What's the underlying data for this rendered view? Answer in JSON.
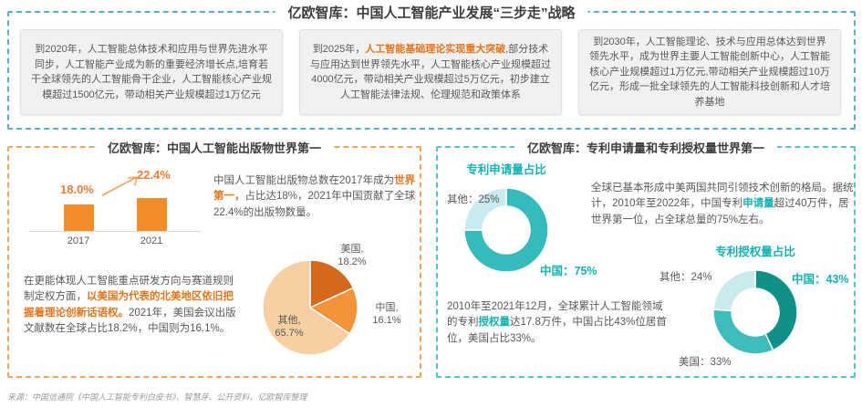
{
  "top": {
    "title": "亿欧智库：中国人工智能产业发展“三步走”战略",
    "boxes": [
      {
        "parts": [
          {
            "t": "到2020年，人工智能总体技术和应用与世界先进水平同步，人工智能产业成为新的重要经济增长点,培育若干全球领先的人工智能骨干企业，人工智能核心产业规模超过1500亿元，带动相关产业规模超过1万亿元"
          }
        ]
      },
      {
        "parts": [
          {
            "t": "到2025年，"
          },
          {
            "t": "人工智能基础理论实现重大突破",
            "hl": "orange"
          },
          {
            "t": ",部分技术与应用达到世界领先水平，人工智能核心产业规模超过4000亿元，带动相关产业规模超过5万亿元，初步建立人工智能法律法规、伦理规范和政策体系"
          }
        ]
      },
      {
        "parts": [
          {
            "t": "到2030年，人工智能理论、技术与应用总体达到世界领先水平，成为世界主要人工智能创新中心，人工智能核心产业规模超过1万亿元,带动相关产业规模超过10万亿元，形成一批全球领先的人工智能科技创新和人才培养基地"
          }
        ]
      }
    ]
  },
  "left_panel": {
    "title": "亿欧智库：中国人工智能出版物世界第一",
    "para1": {
      "parts": [
        {
          "t": "中国人工智能出版物总数在2017年成为"
        },
        {
          "t": "世界第一，",
          "hl": "orange"
        },
        {
          "t": "占比达18%，2021年中国贡献了全球22.4%的出版物数量。"
        }
      ]
    },
    "para2": {
      "parts": [
        {
          "t": "在更能体现人工智能重点研发方向与赛道规则制定权方面，"
        },
        {
          "t": "以美国为代表的北美地区依旧把握着理论创新话语权。",
          "hl": "orange"
        },
        {
          "t": "2021年，美国会议出版文献数在全球占比18.2%，中国则为16.1%。"
        }
      ]
    }
  },
  "right_panel": {
    "title": "亿欧智库：专利申请量和专利授权量世界第一",
    "para1": {
      "parts": [
        {
          "t": "全球已基本形成中美两国共同引领技术创新的格局。据统计，2010年至2022年，中国专利"
        },
        {
          "t": "申请量",
          "hl": "teal"
        },
        {
          "t": "超过40万件，居世界第一位，占全球总量的75%左右。"
        }
      ]
    },
    "para2": {
      "parts": [
        {
          "t": "2010年至2021年12月，全球累计人工智能领域的专利"
        },
        {
          "t": "授权量",
          "hl": "teal"
        },
        {
          "t": "达17.8万件，中国占比43%位居首位，美国占比33%。"
        }
      ]
    }
  },
  "footer": {
    "source": "来源：中国信通院《中国人工智能专利白皮书》、智慧芽、公开资料、亿欧智库整理"
  },
  "chart_data": [
    {
      "id": "china-ai-publications-share",
      "type": "bar",
      "title": "中国人工智能出版物全球占比",
      "categories": [
        "2017",
        "2021"
      ],
      "values": [
        18.0,
        22.4
      ],
      "value_labels": [
        "18.0%",
        "22.4%"
      ],
      "unit": "%",
      "ylim": [
        0,
        25
      ],
      "bar_color": "#F28D2A",
      "grid": false,
      "legend": "none"
    },
    {
      "id": "conference-publications-2021",
      "type": "pie",
      "title": "2021年会议出版文献全球占比",
      "labels": [
        "美国",
        "中国",
        "其他"
      ],
      "values": [
        18.2,
        16.1,
        65.7
      ],
      "label_lines": [
        [
          "美国,",
          "18.2%"
        ],
        [
          "中国,",
          "16.1%"
        ],
        [
          "其他,",
          "65.7%"
        ]
      ],
      "colors": [
        "#D4691B",
        "#F3943B",
        "#F7CFA3"
      ],
      "start_angle": "top",
      "direction": "clockwise"
    },
    {
      "id": "patent-applications-share",
      "type": "donut",
      "title": "专利申请量占比",
      "labels": [
        "中国",
        "其他"
      ],
      "values": [
        75,
        25
      ],
      "point_labels": [
        "中国：75%",
        "其他：25%"
      ],
      "colors": [
        "#35BBBD",
        "#C7EBEE"
      ],
      "start_angle": "top",
      "direction": "clockwise"
    },
    {
      "id": "patent-grants-share",
      "type": "donut",
      "title": "专利授权量占比",
      "labels": [
        "中国",
        "美国",
        "其他"
      ],
      "values": [
        43,
        33,
        24
      ],
      "point_labels": [
        "中国：43%",
        "美国：33%",
        "其他：24%"
      ],
      "colors": [
        "#0F9189",
        "#3FBDBC",
        "#CAEBED"
      ],
      "start_angle": "top",
      "direction": "clockwise"
    }
  ]
}
